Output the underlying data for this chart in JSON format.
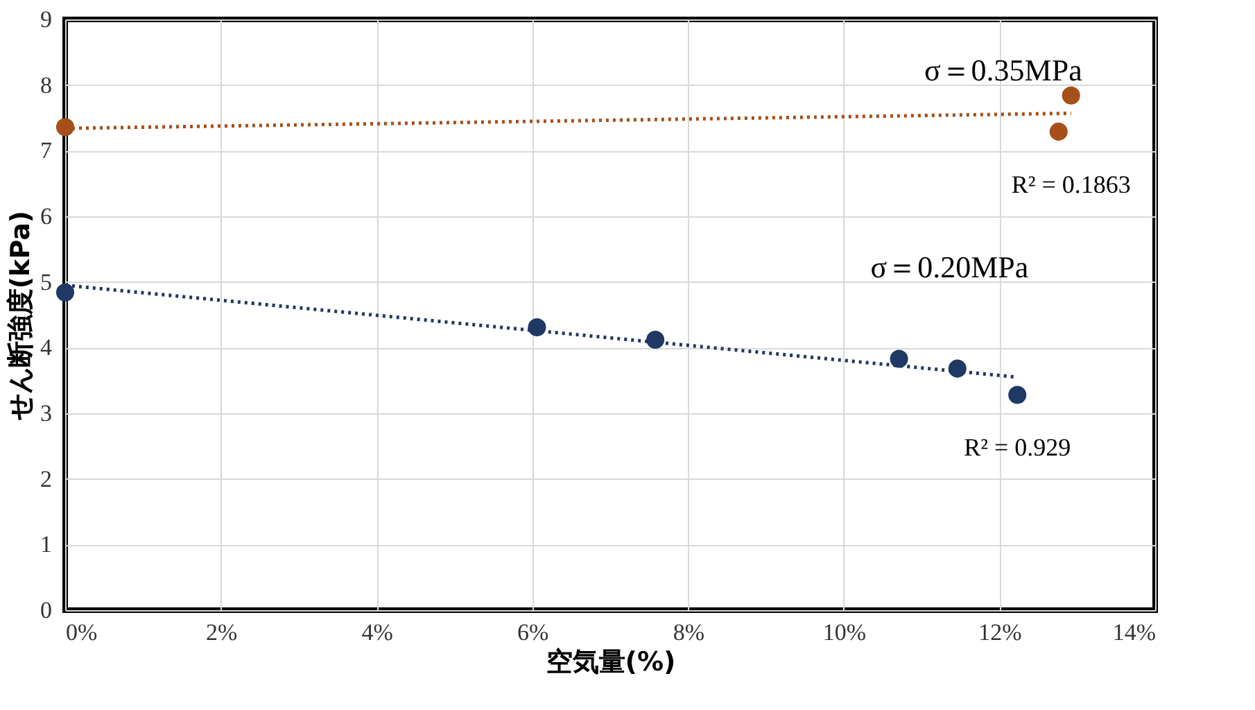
{
  "chart_data": {
    "type": "scatter",
    "xlabel": "空気量(%)",
    "ylabel": "せん断強度(kPa)",
    "xlim": [
      0,
      14
    ],
    "xticks": [
      {
        "value": 0,
        "label": "0%"
      },
      {
        "value": 2,
        "label": "2%"
      },
      {
        "value": 4,
        "label": "4%"
      },
      {
        "value": 6,
        "label": "6%"
      },
      {
        "value": 8,
        "label": "8%"
      },
      {
        "value": 10,
        "label": "10%"
      },
      {
        "value": 12,
        "label": "12%"
      },
      {
        "value": 14,
        "label": "14%"
      }
    ],
    "ylim": [
      0,
      9
    ],
    "yticks": [
      0,
      1,
      2,
      3,
      4,
      5,
      6,
      7,
      8,
      9
    ],
    "grid": true,
    "legend": false,
    "series": [
      {
        "name": "σ＝0.35MPa",
        "marker": "circle",
        "color": "#a5501a",
        "x": [
          0,
          12.76,
          12.92
        ],
        "values": [
          7.36,
          7.29,
          7.84
        ]
      },
      {
        "name": "σ＝0.20MPa",
        "marker": "circle",
        "color": "#203864",
        "x": [
          0,
          6.06,
          7.58,
          10.71,
          11.46,
          12.23
        ],
        "values": [
          4.84,
          4.31,
          4.12,
          3.83,
          3.68,
          3.28
        ]
      },
      {
        "type": "line",
        "line_style": "dotted",
        "color": "#a5501a",
        "x": [
          0,
          12.92
        ],
        "values": [
          7.34,
          7.57
        ]
      },
      {
        "type": "line",
        "line_style": "dotted",
        "color": "#203864",
        "x": [
          0,
          12.23
        ],
        "values": [
          4.95,
          3.55
        ]
      }
    ],
    "annotations": [
      "R² = 0.1863",
      "R² = 0.929"
    ]
  }
}
